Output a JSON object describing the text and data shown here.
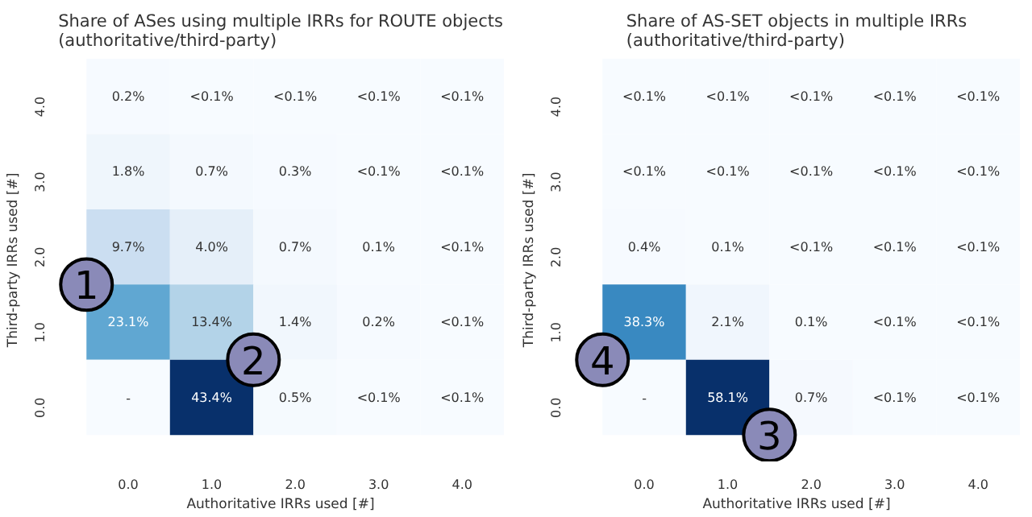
{
  "chart_data": [
    {
      "type": "heatmap",
      "title": "Share of ASes using multiple IRRs for ROUTE objects",
      "subtitle": "(authoritative/third-party)",
      "xlabel": "Authoritative IRRs used [#]",
      "ylabel": "Third-party IRRs used [#]",
      "categories": [
        "0.0",
        "1.0",
        "2.0",
        "3.0",
        "4.0"
      ],
      "y_categories": [
        "4.0",
        "3.0",
        "2.0",
        "1.0",
        "0.0"
      ],
      "cells": [
        [
          0.2,
          null,
          null,
          null,
          null
        ],
        [
          1.8,
          0.7,
          0.3,
          null,
          null
        ],
        [
          9.7,
          4.0,
          0.7,
          0.1,
          null
        ],
        [
          23.1,
          13.4,
          1.4,
          0.2,
          null
        ],
        [
          null,
          43.4,
          0.5,
          null,
          null
        ]
      ],
      "cell_labels": [
        [
          "0.2%",
          "<0.1%",
          "<0.1%",
          "<0.1%",
          "<0.1%"
        ],
        [
          "1.8%",
          "0.7%",
          "0.3%",
          "<0.1%",
          "<0.1%"
        ],
        [
          "9.7%",
          "4.0%",
          "0.7%",
          "0.1%",
          "<0.1%"
        ],
        [
          "23.1%",
          "13.4%",
          "1.4%",
          "0.2%",
          "<0.1%"
        ],
        [
          "-",
          "43.4%",
          "0.5%",
          "<0.1%",
          "<0.1%"
        ]
      ],
      "annotations": [
        "1",
        "2"
      ]
    },
    {
      "type": "heatmap",
      "title": "Share of AS-SET objects in multiple IRRs",
      "subtitle": "(authoritative/third-party)",
      "xlabel": "Authoritative IRRs used [#]",
      "ylabel": "Third-party IRRs used [#]",
      "categories": [
        "0.0",
        "1.0",
        "2.0",
        "3.0",
        "4.0"
      ],
      "y_categories": [
        "4.0",
        "3.0",
        "2.0",
        "1.0",
        "0.0"
      ],
      "cells": [
        [
          null,
          null,
          null,
          null,
          null
        ],
        [
          null,
          null,
          null,
          null,
          null
        ],
        [
          0.4,
          0.1,
          null,
          null,
          null
        ],
        [
          38.3,
          2.1,
          0.1,
          null,
          null
        ],
        [
          null,
          58.1,
          0.7,
          null,
          null
        ]
      ],
      "cell_labels": [
        [
          "<0.1%",
          "<0.1%",
          "<0.1%",
          "<0.1%",
          "<0.1%"
        ],
        [
          "<0.1%",
          "<0.1%",
          "<0.1%",
          "<0.1%",
          "<0.1%"
        ],
        [
          "0.4%",
          "0.1%",
          "<0.1%",
          "<0.1%",
          "<0.1%"
        ],
        [
          "38.3%",
          "2.1%",
          "0.1%",
          "<0.1%",
          "<0.1%"
        ],
        [
          "-",
          "58.1%",
          "0.7%",
          "<0.1%",
          "<0.1%"
        ]
      ],
      "annotations": [
        "3",
        "4"
      ]
    }
  ]
}
